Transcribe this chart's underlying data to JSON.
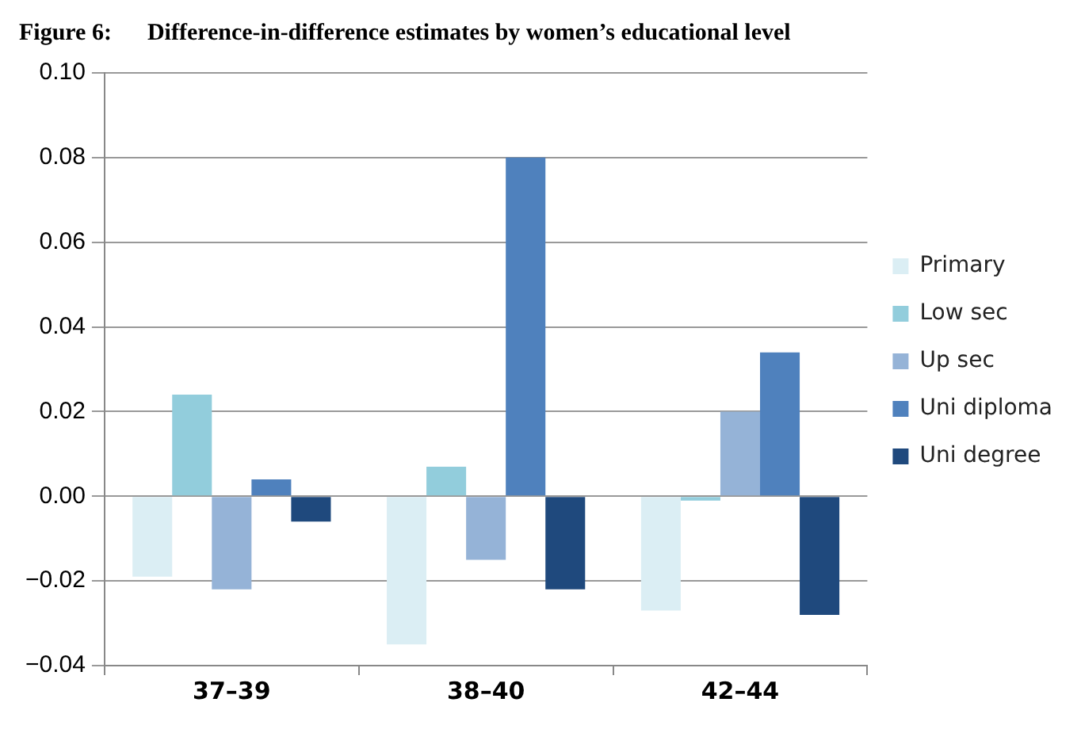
{
  "chart_data": {
    "type": "bar",
    "title": "Figure 6:      Difference-in-difference estimates by women’s educational level",
    "categories": [
      "37–39",
      "38–40",
      "42–44"
    ],
    "series": [
      {
        "name": "Primary",
        "color": "#dbeef4",
        "values": [
          -0.019,
          -0.035,
          -0.027
        ]
      },
      {
        "name": "Low sec",
        "color": "#92cddc",
        "values": [
          0.024,
          0.007,
          -0.001
        ]
      },
      {
        "name": "Up sec",
        "color": "#95b3d7",
        "values": [
          -0.022,
          -0.015,
          0.02
        ]
      },
      {
        "name": "Uni diploma",
        "color": "#4f81bd",
        "values": [
          0.004,
          0.08,
          0.034
        ]
      },
      {
        "name": "Uni degree",
        "color": "#1f497d",
        "values": [
          -0.006,
          -0.022,
          -0.028
        ]
      }
    ],
    "ylim": [
      -0.04,
      0.1
    ],
    "yticks": [
      {
        "value": -0.04,
        "label": "−0.04"
      },
      {
        "value": -0.02,
        "label": "−0.02"
      },
      {
        "value": 0,
        "label": "0.00"
      },
      {
        "value": 0.02,
        "label": "0.02"
      },
      {
        "value": 0.04,
        "label": "0.04"
      },
      {
        "value": 0.06,
        "label": "0.06"
      },
      {
        "value": 0.08,
        "label": "0.08"
      },
      {
        "value": 0.1,
        "label": "0.10"
      }
    ],
    "grid": "y",
    "legend": "right"
  }
}
